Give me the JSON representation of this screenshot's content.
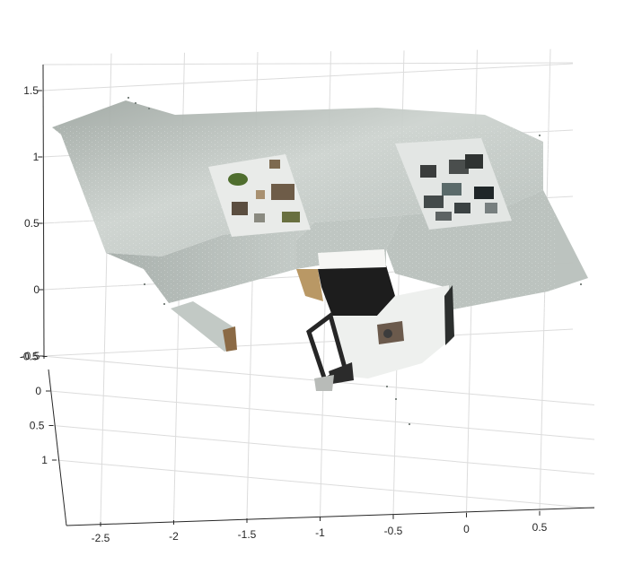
{
  "chart_data": {
    "type": "scatter",
    "title": "",
    "xlabel": "",
    "ylabel": "",
    "zlabel": "",
    "grid": true,
    "box": false,
    "view": "3d",
    "x": {
      "ticks": [
        -2.5,
        -2,
        -1.5,
        -1,
        -0.5,
        0,
        0.5
      ],
      "tick_labels": [
        "-2.5",
        "-2",
        "-1.5",
        "-1",
        "-0.5",
        "0",
        "0.5"
      ],
      "range": [
        -2.75,
        0.85
      ]
    },
    "y": {
      "ticks": [
        -0.5,
        0,
        0.5,
        1
      ],
      "tick_labels": [
        "-0.5",
        "0",
        "0.5",
        "1"
      ],
      "range": [
        -0.9,
        1.3
      ]
    },
    "z": {
      "ticks": [
        -0.5,
        0,
        0.5,
        1,
        1.5
      ],
      "tick_labels": [
        "-0.5",
        "0",
        "0.5",
        "1",
        "1.5"
      ],
      "range": [
        -0.8,
        1.68
      ]
    },
    "series": [
      {
        "marker": "point-cloud",
        "colors": {
          "wall": "#c9cfcb",
          "wall_shadow": "#8e9591",
          "floor": "#b5bcb8",
          "poster": "#e8e8e8",
          "dark": "#1e1e1e",
          "wood": "#b8905e",
          "chair": "#2a2a2a"
        }
      }
    ]
  }
}
